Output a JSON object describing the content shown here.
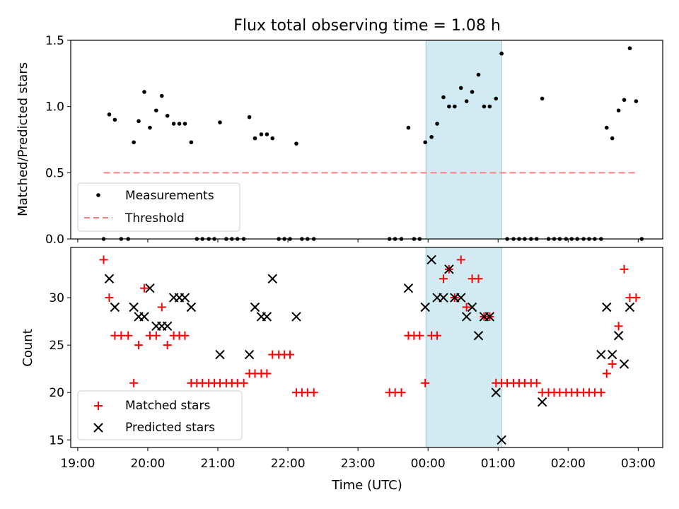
{
  "chart_data": {
    "title": "Flux total observing time = 1.08 h",
    "x_axis": {
      "label": "Time (UTC)",
      "ticks": [
        "19:00",
        "20:00",
        "21:00",
        "22:00",
        "23:00",
        "00:00",
        "01:00",
        "02:00",
        "03:00"
      ],
      "range_hours": [
        18.9,
        27.35
      ],
      "note": "shared x axis, hours after midnight of first day (24 = 00:00)"
    },
    "highlight_span": {
      "from": 23.97,
      "to": 25.05,
      "color": "#add8e6"
    },
    "panels": [
      {
        "type": "scatter",
        "ylabel": "Matched/Predicted stars",
        "ylim": [
          0,
          1.5
        ],
        "yticks": [
          "0.0",
          "0.5",
          "1.0",
          "1.5"
        ],
        "legend": {
          "placement": "lower-left",
          "entries": [
            "Measurements",
            "Threshold"
          ]
        },
        "series": [
          {
            "name": "Measurements",
            "marker": "dot",
            "color": "#000000",
            "points": [
              [
                19.37,
                0
              ],
              [
                19.45,
                0.94
              ],
              [
                19.53,
                0.9
              ],
              [
                19.62,
                0
              ],
              [
                19.72,
                0
              ],
              [
                19.8,
                0.73
              ],
              [
                19.87,
                0.89
              ],
              [
                19.95,
                1.11
              ],
              [
                20.03,
                0.84
              ],
              [
                20.12,
                0.97
              ],
              [
                20.2,
                1.08
              ],
              [
                20.28,
                0.93
              ],
              [
                20.37,
                0.87
              ],
              [
                20.45,
                0.87
              ],
              [
                20.53,
                0.87
              ],
              [
                20.62,
                0.73
              ],
              [
                20.7,
                0
              ],
              [
                20.78,
                0
              ],
              [
                20.87,
                0
              ],
              [
                20.95,
                0
              ],
              [
                21.03,
                0.88
              ],
              [
                21.12,
                0
              ],
              [
                21.2,
                0
              ],
              [
                21.28,
                0
              ],
              [
                21.37,
                0
              ],
              [
                21.45,
                0.92
              ],
              [
                21.53,
                0.76
              ],
              [
                21.62,
                0.79
              ],
              [
                21.7,
                0.79
              ],
              [
                21.78,
                0.76
              ],
              [
                21.87,
                0
              ],
              [
                21.95,
                0
              ],
              [
                22.03,
                0
              ],
              [
                22.12,
                0.72
              ],
              [
                22.2,
                0
              ],
              [
                22.28,
                0
              ],
              [
                22.37,
                0
              ],
              [
                23.45,
                0
              ],
              [
                23.53,
                0
              ],
              [
                23.62,
                0
              ],
              [
                23.72,
                0.84
              ],
              [
                23.8,
                0
              ],
              [
                23.88,
                0
              ],
              [
                23.96,
                0.73
              ],
              [
                24.05,
                0.77
              ],
              [
                24.13,
                0.87
              ],
              [
                24.22,
                1.07
              ],
              [
                24.3,
                1.0
              ],
              [
                24.38,
                1.0
              ],
              [
                24.47,
                1.14
              ],
              [
                24.55,
                1.04
              ],
              [
                24.63,
                1.11
              ],
              [
                24.72,
                1.24
              ],
              [
                24.8,
                1.0
              ],
              [
                24.88,
                1.0
              ],
              [
                24.97,
                1.06
              ],
              [
                25.05,
                1.4
              ],
              [
                25.13,
                0
              ],
              [
                25.22,
                0
              ],
              [
                25.3,
                0
              ],
              [
                25.38,
                0
              ],
              [
                25.47,
                0
              ],
              [
                25.55,
                0
              ],
              [
                25.63,
                1.06
              ],
              [
                25.72,
                0
              ],
              [
                25.8,
                0
              ],
              [
                25.88,
                0
              ],
              [
                25.97,
                0
              ],
              [
                26.05,
                0
              ],
              [
                26.13,
                0
              ],
              [
                26.22,
                0
              ],
              [
                26.3,
                0
              ],
              [
                26.38,
                0
              ],
              [
                26.47,
                0
              ],
              [
                26.55,
                0.84
              ],
              [
                26.63,
                0.76
              ],
              [
                26.72,
                0.97
              ],
              [
                26.8,
                1.05
              ],
              [
                26.88,
                1.44
              ],
              [
                26.97,
                1.04
              ],
              [
                27.05,
                0
              ]
            ]
          },
          {
            "name": "Threshold",
            "style": "dashed",
            "color": "#ff7f7f",
            "points": [
              [
                19.37,
                0.5
              ],
              [
                26.97,
                0.5
              ]
            ]
          }
        ]
      },
      {
        "type": "scatter",
        "ylabel": "Count",
        "ylim": [
          14.2,
          35.3
        ],
        "yticks": [
          "15",
          "20",
          "25",
          "30"
        ],
        "legend": {
          "placement": "lower-left",
          "entries": [
            "Matched stars",
            "Predicted stars"
          ]
        },
        "series": [
          {
            "name": "Matched stars",
            "marker": "plus",
            "color": "#ff0000",
            "points": [
              [
                19.37,
                34
              ],
              [
                19.45,
                30
              ],
              [
                19.53,
                26
              ],
              [
                19.62,
                26
              ],
              [
                19.72,
                26
              ],
              [
                19.8,
                21
              ],
              [
                19.87,
                25
              ],
              [
                19.95,
                31
              ],
              [
                20.03,
                26
              ],
              [
                20.12,
                26
              ],
              [
                20.2,
                29
              ],
              [
                20.28,
                25
              ],
              [
                20.37,
                26
              ],
              [
                20.45,
                26
              ],
              [
                20.53,
                26
              ],
              [
                20.62,
                21
              ],
              [
                20.7,
                21
              ],
              [
                20.78,
                21
              ],
              [
                20.87,
                21
              ],
              [
                20.95,
                21
              ],
              [
                21.03,
                21
              ],
              [
                21.12,
                21
              ],
              [
                21.2,
                21
              ],
              [
                21.28,
                21
              ],
              [
                21.37,
                21
              ],
              [
                21.45,
                22
              ],
              [
                21.53,
                22
              ],
              [
                21.62,
                22
              ],
              [
                21.7,
                22
              ],
              [
                21.78,
                24
              ],
              [
                21.87,
                24
              ],
              [
                21.95,
                24
              ],
              [
                22.03,
                24
              ],
              [
                22.12,
                20
              ],
              [
                22.2,
                20
              ],
              [
                22.28,
                20
              ],
              [
                22.37,
                20
              ],
              [
                23.45,
                20
              ],
              [
                23.53,
                20
              ],
              [
                23.62,
                20
              ],
              [
                23.72,
                26
              ],
              [
                23.8,
                26
              ],
              [
                23.88,
                26
              ],
              [
                23.96,
                21
              ],
              [
                24.05,
                26
              ],
              [
                24.13,
                26
              ],
              [
                24.22,
                32
              ],
              [
                24.3,
                33
              ],
              [
                24.38,
                30
              ],
              [
                24.47,
                34
              ],
              [
                24.55,
                29
              ],
              [
                24.63,
                32
              ],
              [
                24.72,
                32
              ],
              [
                24.8,
                28
              ],
              [
                24.88,
                28
              ],
              [
                24.97,
                21
              ],
              [
                25.05,
                21
              ],
              [
                25.13,
                21
              ],
              [
                25.22,
                21
              ],
              [
                25.3,
                21
              ],
              [
                25.38,
                21
              ],
              [
                25.47,
                21
              ],
              [
                25.55,
                21
              ],
              [
                25.63,
                20
              ],
              [
                25.72,
                20
              ],
              [
                25.8,
                20
              ],
              [
                25.88,
                20
              ],
              [
                25.97,
                20
              ],
              [
                26.05,
                20
              ],
              [
                26.13,
                20
              ],
              [
                26.22,
                20
              ],
              [
                26.3,
                20
              ],
              [
                26.38,
                20
              ],
              [
                26.47,
                20
              ],
              [
                26.55,
                22
              ],
              [
                26.63,
                23
              ],
              [
                26.72,
                27
              ],
              [
                26.8,
                33
              ],
              [
                26.88,
                30
              ],
              [
                26.97,
                30
              ]
            ]
          },
          {
            "name": "Predicted stars",
            "marker": "x",
            "color": "#000000",
            "points": [
              [
                19.45,
                32
              ],
              [
                19.53,
                29
              ],
              [
                19.8,
                29
              ],
              [
                19.87,
                28
              ],
              [
                19.95,
                28
              ],
              [
                20.03,
                31
              ],
              [
                20.12,
                27
              ],
              [
                20.2,
                27
              ],
              [
                20.28,
                27
              ],
              [
                20.37,
                30
              ],
              [
                20.45,
                30
              ],
              [
                20.53,
                30
              ],
              [
                20.62,
                29
              ],
              [
                21.03,
                24
              ],
              [
                21.45,
                24
              ],
              [
                21.53,
                29
              ],
              [
                21.62,
                28
              ],
              [
                21.7,
                28
              ],
              [
                21.78,
                32
              ],
              [
                22.12,
                28
              ],
              [
                23.72,
                31
              ],
              [
                24.05,
                34
              ],
              [
                23.96,
                29
              ],
              [
                24.13,
                30
              ],
              [
                24.22,
                30
              ],
              [
                24.3,
                33
              ],
              [
                24.38,
                30
              ],
              [
                24.47,
                30
              ],
              [
                24.55,
                28
              ],
              [
                24.63,
                29
              ],
              [
                24.72,
                26
              ],
              [
                24.8,
                28
              ],
              [
                24.88,
                28
              ],
              [
                24.97,
                20
              ],
              [
                25.05,
                15
              ],
              [
                25.63,
                19
              ],
              [
                26.47,
                24
              ],
              [
                26.55,
                29
              ],
              [
                26.63,
                24
              ],
              [
                26.72,
                26
              ],
              [
                26.8,
                23
              ],
              [
                26.88,
                29
              ]
            ]
          }
        ]
      }
    ]
  }
}
